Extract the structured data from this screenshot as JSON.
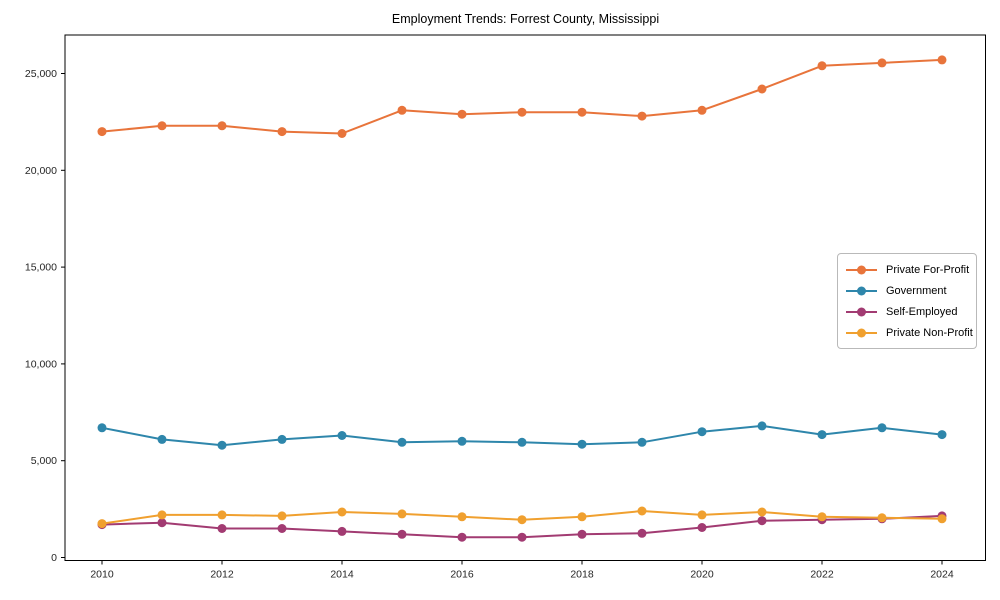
{
  "chart": {
    "title": "Employment Trends: Forrest County, Mississippi"
  },
  "chart_data": {
    "type": "line",
    "title": "Employment Trends: Forrest County, Mississippi",
    "xlabel": "",
    "ylabel": "",
    "grid": false,
    "legend_position": "center right",
    "x": [
      2010,
      2011,
      2012,
      2013,
      2014,
      2015,
      2016,
      2017,
      2018,
      2019,
      2020,
      2021,
      2022,
      2023,
      2024
    ],
    "x_tick_years": [
      2010,
      2012,
      2014,
      2016,
      2018,
      2020,
      2022,
      2024
    ],
    "x_tick_labels": [
      "2010",
      "2012",
      "2014",
      "2016",
      "2018",
      "2020",
      "2022",
      "2024"
    ],
    "y_tick_values": [
      0,
      5000,
      10000,
      15000,
      20000,
      25000
    ],
    "y_tick_labels": [
      "0",
      "5,000",
      "10,000",
      "15,000",
      "20,000",
      "25,000"
    ],
    "ylim": [
      -250,
      27000
    ],
    "series": [
      {
        "name": "Private For-Profit",
        "color": "#E8743B",
        "values": [
          22000,
          22300,
          22300,
          22000,
          21900,
          23100,
          22900,
          23000,
          23000,
          22800,
          23100,
          24200,
          25400,
          25550,
          25700
        ]
      },
      {
        "name": "Government",
        "color": "#2E86AB",
        "values": [
          6700,
          6100,
          5800,
          6100,
          6300,
          5950,
          6000,
          5950,
          5850,
          5950,
          6500,
          6800,
          6350,
          6700,
          6350
        ]
      },
      {
        "name": "Self-Employed",
        "color": "#A23B72",
        "values": [
          1700,
          1800,
          1500,
          1500,
          1350,
          1200,
          1050,
          1050,
          1200,
          1250,
          1550,
          1900,
          1950,
          2000,
          2150
        ]
      },
      {
        "name": "Private Non-Profit",
        "color": "#F0A02F",
        "values": [
          1750,
          2200,
          2200,
          2150,
          2350,
          2250,
          2100,
          1950,
          2100,
          2400,
          2200,
          2350,
          2100,
          2050,
          2000
        ]
      }
    ]
  }
}
